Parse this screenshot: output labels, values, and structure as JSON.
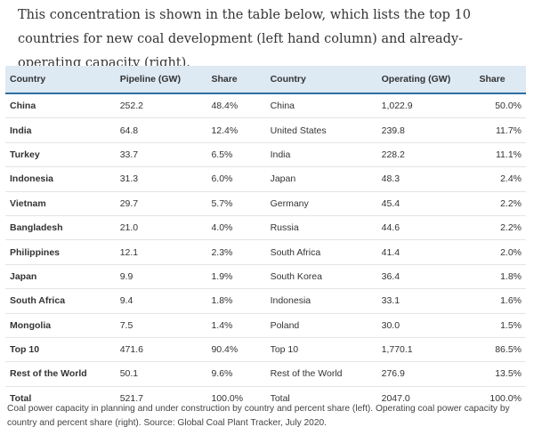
{
  "intro_text": "This concentration is shown in the table below, which lists the top 10 countries for new coal development (left hand column) and already-operating capacity (right).",
  "table": {
    "headers": [
      "Country",
      "Pipeline (GW)",
      "Share",
      "Country",
      "Operating (GW)",
      "Share"
    ],
    "rows": [
      [
        "China",
        "252.2",
        "48.4%",
        "China",
        "1,022.9",
        "50.0%"
      ],
      [
        "India",
        "64.8",
        "12.4%",
        "United States",
        "239.8",
        "11.7%"
      ],
      [
        "Turkey",
        "33.7",
        "6.5%",
        "India",
        "228.2",
        "11.1%"
      ],
      [
        "Indonesia",
        "31.3",
        "6.0%",
        "Japan",
        "48.3",
        "2.4%"
      ],
      [
        "Vietnam",
        "29.7",
        "5.7%",
        "Germany",
        "45.4",
        "2.2%"
      ],
      [
        "Bangladesh",
        "21.0",
        "4.0%",
        "Russia",
        "44.6",
        "2.2%"
      ],
      [
        "Philippines",
        "12.1",
        "2.3%",
        "South Africa",
        "41.4",
        "2.0%"
      ],
      [
        "Japan",
        "9.9",
        "1.9%",
        "South Korea",
        "36.4",
        "1.8%"
      ],
      [
        "South Africa",
        "9.4",
        "1.8%",
        "Indonesia",
        "33.1",
        "1.6%"
      ],
      [
        "Mongolia",
        "7.5",
        "1.4%",
        "Poland",
        "30.0",
        "1.5%"
      ],
      [
        "Top 10",
        "471.6",
        "90.4%",
        "Top 10",
        "1,770.1",
        "86.5%"
      ],
      [
        "Rest of the World",
        "50.1",
        "9.6%",
        "Rest of the World",
        "276.9",
        "13.5%"
      ],
      [
        "Total",
        "521.7",
        "100.0%",
        "Total",
        "2047.0",
        "100.0%"
      ]
    ]
  },
  "caption": "Coal power capacity in planning and under construction by country and percent share (left). Operating coal power capacity by country and percent share (right). Source: Global Coal Plant Tracker, July 2020.",
  "colors": {
    "header_bg": "#dde9f3",
    "header_rule": "#2f6ea3"
  }
}
